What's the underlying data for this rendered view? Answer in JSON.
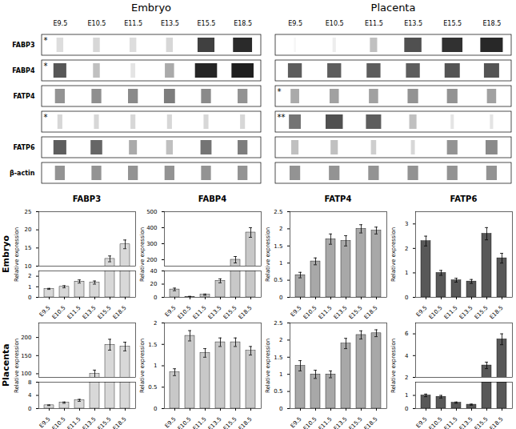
{
  "chart_data": [
    {
      "type": "heatmap",
      "title": "Embryo",
      "x": [
        "E9.5",
        "E10.5",
        "E11.5",
        "E13.5",
        "E15.5",
        "E18.5"
      ],
      "y": [
        "FABP3",
        "FABP4",
        "FATP4",
        null,
        "FATP6",
        "β-actin"
      ],
      "cells": [
        [
          0.15,
          0.18,
          0.15,
          0.18,
          0.85,
          0.95
        ],
        [
          0.75,
          0.28,
          0.12,
          0.38,
          0.97,
          1.0
        ],
        [
          0.48,
          0.5,
          0.52,
          0.58,
          0.52,
          0.48
        ],
        [
          0.18,
          0.18,
          0.18,
          0.18,
          0.18,
          0.18
        ],
        [
          0.72,
          0.68,
          0.38,
          0.28,
          0.62,
          0.58
        ],
        [
          0.48,
          0.48,
          0.48,
          0.48,
          0.48,
          0.48
        ]
      ],
      "band_widths": [
        [
          0.22,
          0.22,
          0.22,
          0.22,
          0.55,
          0.62
        ],
        [
          0.42,
          0.22,
          0.15,
          0.3,
          0.72,
          0.72
        ],
        [
          0.32,
          0.32,
          0.32,
          0.36,
          0.32,
          0.32
        ],
        [
          0.16,
          0.16,
          0.16,
          0.16,
          0.16,
          0.16
        ],
        [
          0.42,
          0.38,
          0.26,
          0.22,
          0.36,
          0.32
        ],
        [
          0.32,
          0.32,
          0.32,
          0.32,
          0.32,
          0.32
        ]
      ],
      "annotations": [
        {
          "row": 0,
          "text": "*"
        },
        {
          "row": 1,
          "text": "*"
        },
        {
          "row": 3,
          "text": "*"
        }
      ]
    },
    {
      "type": "heatmap",
      "title": "Placenta",
      "x": [
        "E9.5",
        "E10.5",
        "E11.5",
        "E13.5",
        "E15.5",
        "E18.5"
      ],
      "y": [
        null,
        null,
        null,
        null,
        null,
        null
      ],
      "cells": [
        [
          0.04,
          0.08,
          0.28,
          0.78,
          0.92,
          0.96
        ],
        [
          0.72,
          0.72,
          0.72,
          0.72,
          0.76,
          0.76
        ],
        [
          0.38,
          0.42,
          0.42,
          0.48,
          0.48,
          0.42
        ],
        [
          0.62,
          0.78,
          0.72,
          0.28,
          0.12,
          0.12
        ],
        [
          0.28,
          0.28,
          0.22,
          0.18,
          0.48,
          0.52
        ],
        [
          0.48,
          0.48,
          0.48,
          0.48,
          0.48,
          0.48
        ]
      ],
      "band_widths": [
        [
          0.06,
          0.1,
          0.22,
          0.52,
          0.62,
          0.68
        ],
        [
          0.42,
          0.42,
          0.42,
          0.42,
          0.46,
          0.46
        ],
        [
          0.26,
          0.28,
          0.28,
          0.32,
          0.32,
          0.28
        ],
        [
          0.36,
          0.52,
          0.46,
          0.22,
          0.1,
          0.1
        ],
        [
          0.22,
          0.22,
          0.16,
          0.12,
          0.32,
          0.36
        ],
        [
          0.32,
          0.32,
          0.32,
          0.32,
          0.32,
          0.32
        ]
      ],
      "annotations": [
        {
          "row": 2,
          "text": "*"
        },
        {
          "row": 3,
          "text": "**"
        }
      ]
    },
    {
      "type": "bar",
      "title": "FABP3",
      "annotations": [
        "Embryo"
      ],
      "ylabel": "Relative expression",
      "categories": [
        "E9.5",
        "E10.5",
        "E11.5",
        "E13.5",
        "E15.5",
        "E18.5"
      ],
      "values": [
        0.8,
        1.0,
        1.5,
        1.4,
        12.0,
        16.0
      ],
      "errors": [
        0.05,
        0.1,
        0.15,
        0.15,
        0.8,
        1.2
      ],
      "color": "#d8d8d8",
      "ylim": [
        [
          0,
          2.5
        ],
        [
          10.0,
          25
        ]
      ],
      "yticks": [
        [
          0,
          1,
          2
        ],
        [
          10,
          15,
          20,
          25
        ]
      ]
    },
    {
      "type": "bar",
      "title": "FABP4",
      "ylabel": "Relative expression",
      "categories": [
        "E9.5",
        "E10.5",
        "E11.5",
        "E13.5",
        "E15.5",
        "E18.5"
      ],
      "values": [
        12.0,
        1.0,
        4.0,
        25.0,
        200.0,
        370.0
      ],
      "errors": [
        2.0,
        0.5,
        1.0,
        3.0,
        20.0,
        30.0
      ],
      "color": "#c8c8c8",
      "ylim": [
        [
          0,
          40
        ],
        [
          160,
          500
        ]
      ],
      "yticks": [
        [
          0,
          20,
          40
        ],
        [
          200,
          300,
          400,
          500
        ]
      ]
    },
    {
      "type": "bar",
      "title": "FATP4",
      "ylabel": "Relative expression",
      "categories": [
        "E9.5",
        "E10.5",
        "E11.5",
        "E13.5",
        "E15.5",
        "E18.5"
      ],
      "values": [
        0.65,
        1.05,
        1.7,
        1.65,
        2.0,
        1.95
      ],
      "errors": [
        0.08,
        0.1,
        0.15,
        0.15,
        0.12,
        0.1
      ],
      "color": "#a8a8a8",
      "ylim": [
        0,
        2.5
      ],
      "yticks": [
        0,
        0.5,
        1,
        1.5,
        2,
        2.5
      ]
    },
    {
      "type": "bar",
      "title": "FATP6",
      "ylabel": "Relative expression",
      "categories": [
        "E9.5",
        "E10.5",
        "E11.5",
        "E13.5",
        "E15.5",
        "E18.5"
      ],
      "values": [
        2.3,
        1.0,
        0.7,
        0.65,
        2.6,
        1.6
      ],
      "errors": [
        0.2,
        0.1,
        0.08,
        0.08,
        0.25,
        0.2
      ],
      "color": "#585858",
      "ylim": [
        0,
        3.5
      ],
      "yticks": [
        0,
        1,
        2,
        3
      ]
    },
    {
      "type": "bar",
      "annotations": [
        "Placenta"
      ],
      "ylabel": "Relative expression",
      "categories": [
        "E9.5",
        "E10.5",
        "E11.5",
        "E13.5",
        "E15.5",
        "E18.5"
      ],
      "values": [
        1.0,
        1.8,
        2.5,
        100.0,
        180.0,
        175.0
      ],
      "errors": [
        0.1,
        0.2,
        0.3,
        10.0,
        15.0,
        12.0
      ],
      "color": "#d8d8d8",
      "ylim": [
        [
          0,
          8
        ],
        [
          90,
          240
        ]
      ],
      "yticks": [
        [
          0,
          4,
          8
        ],
        [
          100,
          150,
          200
        ]
      ]
    },
    {
      "type": "bar",
      "ylabel": "Relative expression",
      "categories": [
        "E9.5",
        "E10.5",
        "E11.5",
        "E13.5",
        "E15.5",
        "E18.5"
      ],
      "values": [
        0.85,
        1.7,
        1.3,
        1.55,
        1.55,
        1.35
      ],
      "errors": [
        0.08,
        0.12,
        0.1,
        0.1,
        0.1,
        0.1
      ],
      "color": "#c8c8c8",
      "ylim": [
        0,
        2.0
      ],
      "yticks": [
        0,
        0.5,
        1,
        1.5,
        2
      ]
    },
    {
      "type": "bar",
      "ylabel": "Relative expression",
      "categories": [
        "E9.5",
        "E10.5",
        "E11.5",
        "E13.5",
        "E15.5",
        "E18.5"
      ],
      "values": [
        1.25,
        1.0,
        1.0,
        1.9,
        2.15,
        2.2
      ],
      "errors": [
        0.15,
        0.12,
        0.1,
        0.15,
        0.12,
        0.1
      ],
      "color": "#a8a8a8",
      "ylim": [
        0,
        2.5
      ],
      "yticks": [
        0,
        0.5,
        1,
        1.5,
        2,
        2.5
      ]
    },
    {
      "type": "bar",
      "ylabel": "Relative expression",
      "categories": [
        "E9.5",
        "E10.5",
        "E11.5",
        "E13.5",
        "E15.5",
        "E18.5"
      ],
      "values": [
        1.0,
        0.9,
        0.45,
        0.3,
        3.1,
        5.5
      ],
      "errors": [
        0.1,
        0.1,
        0.05,
        0.04,
        0.3,
        0.5
      ],
      "color": "#585858",
      "ylim": [
        [
          0,
          2.0
        ],
        [
          2,
          7
        ]
      ],
      "yticks": [
        [
          0,
          1
        ],
        [
          2,
          4,
          6
        ]
      ]
    }
  ]
}
